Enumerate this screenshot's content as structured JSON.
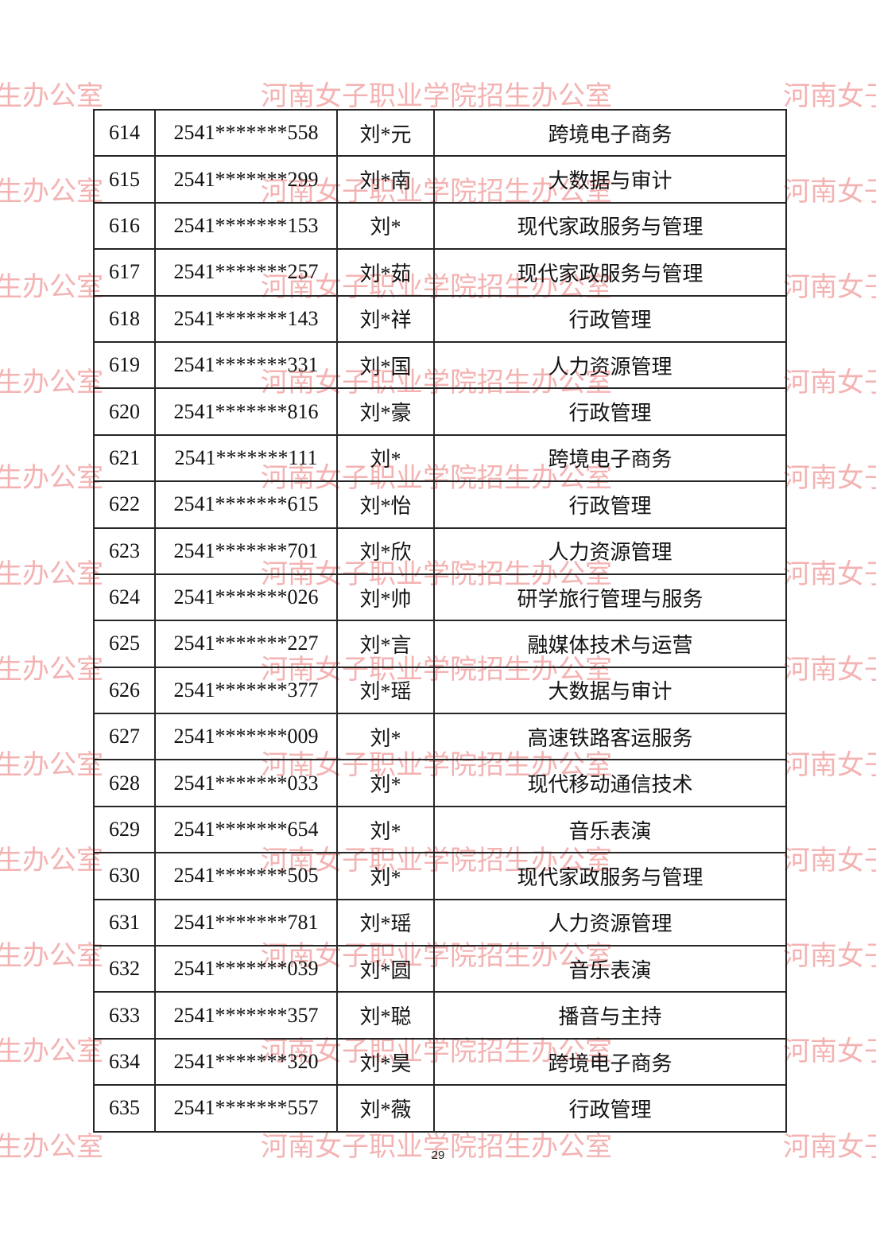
{
  "page": {
    "number": "29"
  },
  "watermark": {
    "text": "河南女子职业学院招生办公室"
  },
  "table": {
    "rows": [
      {
        "no": "614",
        "id": "2541*******558",
        "name": "刘*元",
        "major": "跨境电子商务"
      },
      {
        "no": "615",
        "id": "2541*******299",
        "name": "刘*南",
        "major": "大数据与审计"
      },
      {
        "no": "616",
        "id": "2541*******153",
        "name": "刘*",
        "major": "现代家政服务与管理"
      },
      {
        "no": "617",
        "id": "2541*******257",
        "name": "刘*茹",
        "major": "现代家政服务与管理"
      },
      {
        "no": "618",
        "id": "2541*******143",
        "name": "刘*祥",
        "major": "行政管理"
      },
      {
        "no": "619",
        "id": "2541*******331",
        "name": "刘*国",
        "major": "人力资源管理"
      },
      {
        "no": "620",
        "id": "2541*******816",
        "name": "刘*豪",
        "major": "行政管理"
      },
      {
        "no": "621",
        "id": "2541*******111",
        "name": "刘*",
        "major": "跨境电子商务"
      },
      {
        "no": "622",
        "id": "2541*******615",
        "name": "刘*怡",
        "major": "行政管理"
      },
      {
        "no": "623",
        "id": "2541*******701",
        "name": "刘*欣",
        "major": "人力资源管理"
      },
      {
        "no": "624",
        "id": "2541*******026",
        "name": "刘*帅",
        "major": "研学旅行管理与服务"
      },
      {
        "no": "625",
        "id": "2541*******227",
        "name": "刘*言",
        "major": "融媒体技术与运营"
      },
      {
        "no": "626",
        "id": "2541*******377",
        "name": "刘*瑶",
        "major": "大数据与审计"
      },
      {
        "no": "627",
        "id": "2541*******009",
        "name": "刘*",
        "major": "高速铁路客运服务"
      },
      {
        "no": "628",
        "id": "2541*******033",
        "name": "刘*",
        "major": "现代移动通信技术"
      },
      {
        "no": "629",
        "id": "2541*******654",
        "name": "刘*",
        "major": "音乐表演"
      },
      {
        "no": "630",
        "id": "2541*******505",
        "name": "刘*",
        "major": "现代家政服务与管理"
      },
      {
        "no": "631",
        "id": "2541*******781",
        "name": "刘*瑶",
        "major": "人力资源管理"
      },
      {
        "no": "632",
        "id": "2541*******039",
        "name": "刘*圆",
        "major": "音乐表演"
      },
      {
        "no": "633",
        "id": "2541*******357",
        "name": "刘*聪",
        "major": "播音与主持"
      },
      {
        "no": "634",
        "id": "2541*******320",
        "name": "刘*昊",
        "major": "跨境电子商务"
      },
      {
        "no": "635",
        "id": "2541*******557",
        "name": "刘*薇",
        "major": "行政管理"
      }
    ]
  }
}
